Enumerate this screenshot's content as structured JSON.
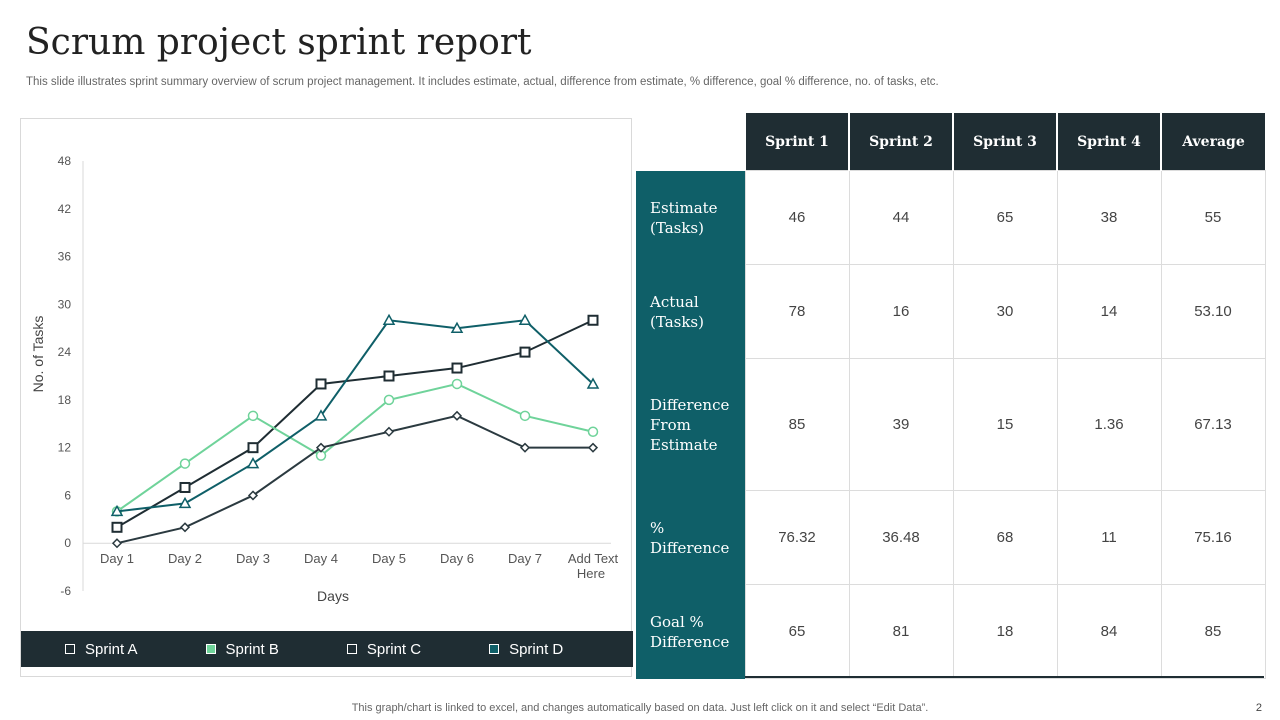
{
  "page": {
    "title": "Scrum project sprint report",
    "subtitle": "This slide illustrates sprint summary overview of scrum project management. It includes estimate, actual, difference from estimate, % difference, goal % difference, no. of tasks, etc.",
    "footer": "This graph/chart is linked to excel,  and changes automatically based on data. Just left click on it and select “Edit Data”.",
    "page_number": "2"
  },
  "chart_data": {
    "type": "line",
    "categories": [
      "Day 1",
      "Day 2",
      "Day 3",
      "Day 4",
      "Day 5",
      "Day 6",
      "Day 7",
      "Add Text Here"
    ],
    "xlabel": "Days",
    "ylabel": "No. of Tasks",
    "ylim": [
      -6,
      48
    ],
    "yticks": [
      48,
      42,
      36,
      30,
      24,
      18,
      12,
      6,
      0,
      -6
    ],
    "grid": false,
    "legend_position": "bottom",
    "series": [
      {
        "name": "Sprint A",
        "color": "#1f2d33",
        "marker": "square",
        "values": [
          2,
          7,
          12,
          20,
          21,
          22,
          24,
          28
        ]
      },
      {
        "name": "Sprint B",
        "color": "#6fd39a",
        "marker": "circle",
        "values": [
          4,
          10,
          16,
          11,
          18,
          20,
          16,
          14
        ]
      },
      {
        "name": "Sprint C",
        "color": "#2b3a40",
        "marker": "diamond",
        "values": [
          0,
          2,
          6,
          12,
          14,
          16,
          12,
          12
        ]
      },
      {
        "name": "Sprint D",
        "color": "#0f5f68",
        "marker": "triangle",
        "values": [
          4,
          5,
          10,
          16,
          28,
          27,
          28,
          20
        ]
      }
    ]
  },
  "legend": [
    {
      "label": "Sprint A",
      "swatch_color": "#1f2d33"
    },
    {
      "label": "Sprint B",
      "swatch_color": "#6fd39a"
    },
    {
      "label": "Sprint C",
      "swatch_color": "#1f2d33"
    },
    {
      "label": "Sprint D",
      "swatch_color": "#0f5f68"
    }
  ],
  "table": {
    "columns": [
      "Sprint 1",
      "Sprint 2",
      "Sprint 3",
      "Sprint 4",
      "Average"
    ],
    "rows": [
      {
        "label": "Estimate (Tasks)",
        "values": [
          "46",
          "44",
          "65",
          "38",
          "55"
        ]
      },
      {
        "label": "Actual (Tasks)",
        "values": [
          "78",
          "16",
          "30",
          "14",
          "53.10"
        ]
      },
      {
        "label": "Difference From Estimate",
        "values": [
          "85",
          "39",
          "15",
          "1.36",
          "67.13"
        ]
      },
      {
        "label": "% Difference",
        "values": [
          "76.32",
          "36.48",
          "68",
          "11",
          "75.16"
        ]
      },
      {
        "label": "Goal % Difference",
        "values": [
          "65",
          "81",
          "18",
          "84",
          "85"
        ]
      }
    ]
  }
}
